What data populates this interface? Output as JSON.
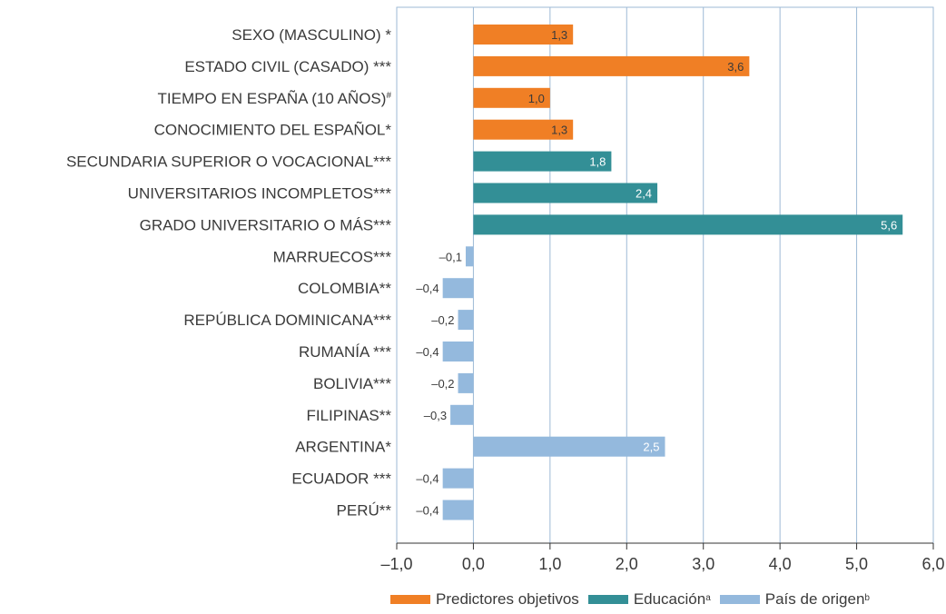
{
  "chart_data": {
    "type": "bar",
    "orientation": "horizontal",
    "categories": [
      "SEXO (MASCULINO) *",
      "ESTADO CIVIL (CASADO) ***",
      "TIEMPO EN ESPAÑA (10 AÑOS)#",
      "CONOCIMIENTO DEL ESPAÑOL*",
      "SECUNDARIA SUPERIOR O VOCACIONAL***",
      "UNIVERSITARIOS INCOMPLETOS***",
      "GRADO UNIVERSITARIO O MÁS***",
      "MARRUECOS***",
      "COLOMBIA**",
      "REPÚBLICA DOMINICANA***",
      "RUMANÍA ***",
      "BOLIVIA***",
      "FILIPINAS**",
      "ARGENTINA*",
      "ECUADOR ***",
      "PERÚ**"
    ],
    "values": [
      1.3,
      3.6,
      1.0,
      1.3,
      1.8,
      2.4,
      5.6,
      -0.1,
      -0.4,
      -0.2,
      -0.4,
      -0.2,
      -0.3,
      2.5,
      -0.4,
      -0.4
    ],
    "value_labels": [
      "1,3",
      "3,6",
      "1,0",
      "1,3",
      "1,8",
      "2,4",
      "5,6",
      "–0,1",
      "–0,4",
      "–0,2",
      "–0,4",
      "–0,2",
      "–0,3",
      "2,5",
      "–0,4",
      "–0,4"
    ],
    "groups": [
      0,
      0,
      0,
      0,
      1,
      1,
      1,
      2,
      2,
      2,
      2,
      2,
      2,
      2,
      2,
      2
    ],
    "series": [
      {
        "name": "Predictores objetivos",
        "sup": "",
        "color": "#f07f25"
      },
      {
        "name": "Educación",
        "sup": "a",
        "color": "#338f96"
      },
      {
        "name": "País de origen",
        "sup": "b",
        "color": "#94b9dd"
      }
    ],
    "xlim": [
      -1.0,
      6.0
    ],
    "xticks": [
      -1,
      0,
      1,
      2,
      3,
      4,
      5,
      6
    ],
    "xtick_labels": [
      "–1,0",
      "0,0",
      "1,0",
      "2,0",
      "3,0",
      "4,0",
      "5,0",
      "6,0"
    ],
    "grid": "vertical",
    "legend_position": "bottom-right"
  }
}
